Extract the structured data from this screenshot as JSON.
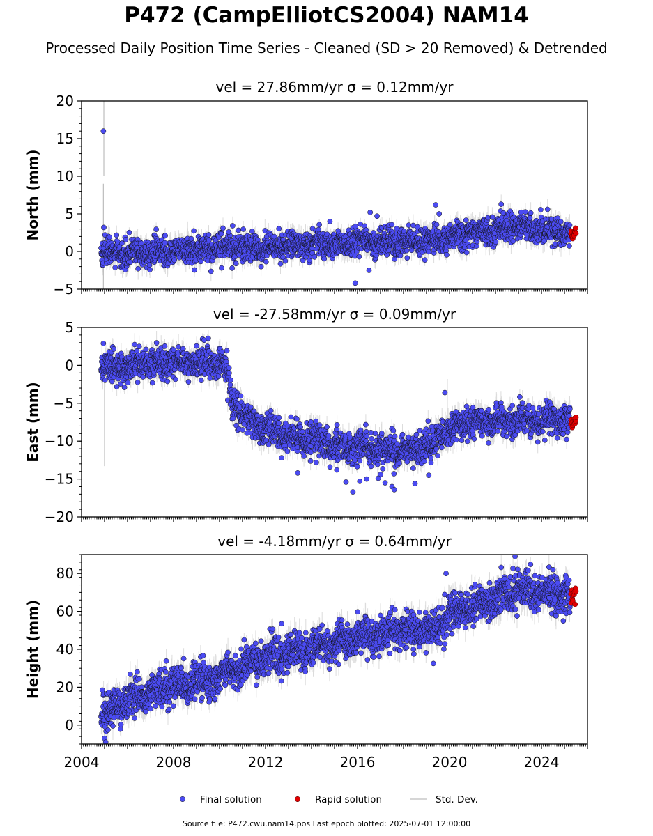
{
  "figure": {
    "title": "P472 (CampElliotCS2004) NAM14",
    "subtitle": "Processed Daily Position Time Series - Cleaned (SD > 20 Removed) & Detrended",
    "footer": "Source file: P472.cwu.nam14.pos  Last epoch plotted: 2025-07-01 12:00:00"
  },
  "colors": {
    "final": "#4b4bf2",
    "rapid": "#e00000",
    "std_dev": "#9a9a9a",
    "marker_edge": "#111111"
  },
  "legend": {
    "placement": "bottom-center",
    "items": [
      {
        "label": "Final solution",
        "color": "#4b4bf2"
      },
      {
        "label": "Rapid solution",
        "color": "#e00000"
      },
      {
        "label": "Std. Dev.",
        "color": "#c8c8c8"
      }
    ]
  },
  "chart_data": [
    {
      "type": "scatter",
      "panel": "north",
      "title": "vel = 27.86mm/yr   σ = 0.12mm/yr",
      "ylabel": "North (mm)",
      "xlim": [
        2004.0,
        2026.0
      ],
      "ylim": [
        -5,
        20
      ],
      "yticks": [
        -5,
        0,
        5,
        10,
        15,
        20
      ],
      "xticks": [
        2004,
        2008,
        2012,
        2016,
        2020,
        2024
      ],
      "show_xtick_labels": false,
      "series": [
        {
          "name": "Final solution",
          "start": 2004.85,
          "end": 2025.25,
          "trend": [
            [
              2004.85,
              -0.3
            ],
            [
              2008.0,
              0.2
            ],
            [
              2012.0,
              0.6
            ],
            [
              2016.0,
              1.2
            ],
            [
              2019.0,
              1.5
            ],
            [
              2021.0,
              2.4
            ],
            [
              2023.0,
              3.4
            ],
            [
              2025.25,
              2.5
            ]
          ],
          "scatter_sd": 0.9,
          "err_sd": 1.1
        },
        {
          "name": "Rapid solution",
          "start": 2025.28,
          "end": 2025.5,
          "trend": [
            [
              2025.28,
              2.4
            ],
            [
              2025.5,
              2.4
            ]
          ],
          "scatter_sd": 0.45
        }
      ],
      "outliers": [
        [
          2004.95,
          16.0
        ],
        [
          2004.97,
          3.2
        ],
        [
          2015.9,
          -4.2
        ],
        [
          2016.55,
          5.2
        ],
        [
          2016.85,
          4.7
        ],
        [
          2019.4,
          6.2
        ],
        [
          2019.55,
          5.0
        ],
        [
          2016.5,
          -2.5
        ],
        [
          2014.8,
          4.0
        ],
        [
          2010.4,
          2.6
        ]
      ],
      "spikes": [
        [
          2004.97,
          10.0,
          20.0
        ],
        [
          2004.95,
          -5.0,
          9.0
        ],
        [
          2008.6,
          1.0,
          4.0
        ]
      ]
    },
    {
      "type": "scatter",
      "panel": "east",
      "title": "vel = -27.58mm/yr   σ = 0.09mm/yr",
      "ylabel": "East (mm)",
      "xlim": [
        2004.0,
        2026.0
      ],
      "ylim": [
        -20,
        5
      ],
      "yticks": [
        -20,
        -15,
        -10,
        -5,
        0,
        5
      ],
      "xticks": [
        2004,
        2008,
        2012,
        2016,
        2020,
        2024
      ],
      "show_xtick_labels": false,
      "series": [
        {
          "name": "Final solution",
          "start": 2004.85,
          "end": 2025.25,
          "trend": [
            [
              2004.85,
              -0.3
            ],
            [
              2008.0,
              0.3
            ],
            [
              2010.0,
              0.5
            ],
            [
              2010.3,
              -0.5
            ],
            [
              2010.55,
              -4.5
            ],
            [
              2011.0,
              -7.2
            ],
            [
              2013.0,
              -9.5
            ],
            [
              2016.0,
              -11.0
            ],
            [
              2018.0,
              -11.3
            ],
            [
              2019.2,
              -10.8
            ],
            [
              2019.7,
              -8.8
            ],
            [
              2021.0,
              -7.5
            ],
            [
              2025.25,
              -7.2
            ]
          ],
          "scatter_sd": 1.0,
          "err_sd": 1.2
        },
        {
          "name": "Rapid solution",
          "start": 2025.28,
          "end": 2025.5,
          "trend": [
            [
              2025.28,
              -7.7
            ],
            [
              2025.5,
              -7.7
            ]
          ],
          "scatter_sd": 0.5
        }
      ],
      "outliers": [
        [
          2004.95,
          2.9
        ],
        [
          2019.8,
          -3.6
        ],
        [
          2015.8,
          -16.7
        ],
        [
          2016.1,
          -15.3
        ],
        [
          2016.4,
          -15.0
        ],
        [
          2017.2,
          -15.5
        ],
        [
          2017.5,
          -16.0
        ],
        [
          2017.6,
          -16.4
        ],
        [
          2018.5,
          -15.6
        ],
        [
          2013.4,
          -14.2
        ],
        [
          2015.5,
          -15.4
        ],
        [
          2017.0,
          -14.4
        ],
        [
          2019.1,
          -14.5
        ],
        [
          2012.7,
          -12.2
        ],
        [
          2015.1,
          -13.8
        ],
        [
          2016.9,
          -14.9
        ]
      ],
      "spikes": [
        [
          2005.0,
          -13.3,
          -1.0
        ],
        [
          2019.9,
          -8.0,
          -1.8
        ]
      ]
    },
    {
      "type": "scatter",
      "panel": "height",
      "title": "vel = -4.18mm/yr   σ = 0.64mm/yr",
      "ylabel": "Height (mm)",
      "xlim": [
        2004.0,
        2026.0
      ],
      "ylim": [
        -10,
        90
      ],
      "yticks": [
        0,
        20,
        40,
        60,
        80
      ],
      "xticks": [
        2004,
        2008,
        2012,
        2016,
        2020,
        2024
      ],
      "xtick_labels": [
        "2004",
        "2008",
        "2012",
        "2016",
        "2020",
        "2024"
      ],
      "show_xtick_labels": true,
      "series": [
        {
          "name": "Final solution",
          "start": 2004.85,
          "end": 2025.25,
          "trend": [
            [
              2004.85,
              5.0
            ],
            [
              2005.5,
              10.0
            ],
            [
              2006.5,
              16.0
            ],
            [
              2008.0,
              20.0
            ],
            [
              2010.0,
              25.0
            ],
            [
              2011.0,
              32.0
            ],
            [
              2012.0,
              36.0
            ],
            [
              2014.0,
              40.0
            ],
            [
              2016.0,
              46.0
            ],
            [
              2018.0,
              50.0
            ],
            [
              2019.3,
              49.0
            ],
            [
              2020.0,
              58.0
            ],
            [
              2021.5,
              65.0
            ],
            [
              2023.0,
              71.0
            ],
            [
              2025.25,
              68.0
            ]
          ],
          "scatter_sd": 4.8,
          "err_sd": 5.5
        },
        {
          "name": "Rapid solution",
          "start": 2025.28,
          "end": 2025.5,
          "trend": [
            [
              2025.28,
              68.0
            ],
            [
              2025.5,
              68.0
            ]
          ],
          "scatter_sd": 2.3
        }
      ],
      "outliers": [
        [
          2004.9,
          18.5
        ],
        [
          2019.85,
          80.0
        ],
        [
          2022.85,
          89.0
        ],
        [
          2024.95,
          55.0
        ],
        [
          2005.0,
          -7.0
        ],
        [
          2005.05,
          -9.0
        ],
        [
          2012.7,
          53.5
        ],
        [
          2019.3,
          32.5
        ],
        [
          2024.5,
          82.0
        ]
      ],
      "spikes": [
        [
          2005.0,
          -10.0,
          5.0
        ]
      ]
    }
  ]
}
